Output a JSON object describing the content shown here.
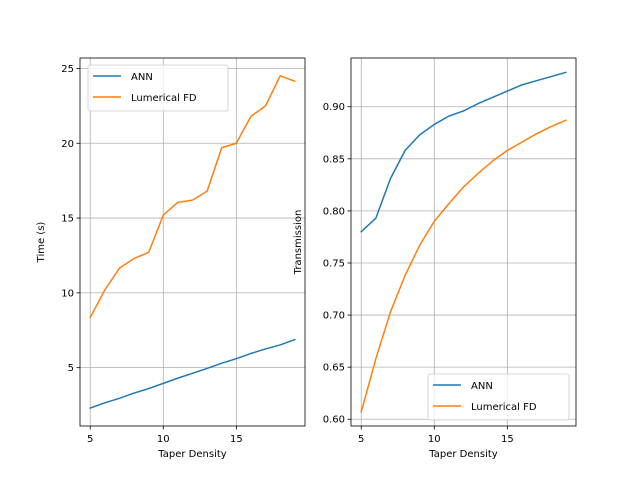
{
  "chart_data": [
    {
      "type": "line",
      "xlabel": "Taper Density",
      "ylabel": "Time (s)",
      "xlim": [
        4.3,
        19.7
      ],
      "ylim": [
        1.1,
        25.7
      ],
      "xticks": [
        5,
        10,
        15
      ],
      "yticks": [
        5,
        10,
        15,
        20,
        25
      ],
      "ytick_format": 0,
      "grid": true,
      "legend_position": "upper-left",
      "x": [
        5,
        6,
        7,
        8,
        9,
        10,
        11,
        12,
        13,
        14,
        15,
        16,
        17,
        18,
        19
      ],
      "series": [
        {
          "name": "ANN",
          "color": "#1f77b4",
          "values": [
            2.3,
            2.65,
            2.95,
            3.3,
            3.6,
            3.95,
            4.3,
            4.62,
            4.95,
            5.3,
            5.6,
            5.95,
            6.25,
            6.52,
            6.88
          ]
        },
        {
          "name": "Lumerical FD",
          "color": "#ff7f0e",
          "values": [
            8.35,
            10.2,
            11.65,
            12.3,
            12.7,
            15.2,
            16.05,
            16.2,
            16.8,
            19.7,
            20.0,
            21.8,
            22.5,
            24.5,
            24.15
          ]
        }
      ]
    },
    {
      "type": "line",
      "xlabel": "Taper Density",
      "ylabel": "Transmission",
      "xlim": [
        4.3,
        19.7
      ],
      "ylim": [
        0.5935,
        0.9468
      ],
      "xticks": [
        5,
        10,
        15
      ],
      "yticks": [
        0.6,
        0.65,
        0.7,
        0.75,
        0.8,
        0.85,
        0.9
      ],
      "ytick_format": 2,
      "grid": true,
      "legend_position": "lower-right",
      "x": [
        5,
        6,
        7,
        8,
        9,
        10,
        11,
        12,
        13,
        14,
        15,
        16,
        17,
        18,
        19
      ],
      "series": [
        {
          "name": "ANN",
          "color": "#1f77b4",
          "values": [
            0.78,
            0.793,
            0.831,
            0.858,
            0.873,
            0.883,
            0.891,
            0.896,
            0.903,
            0.909,
            0.915,
            0.921,
            0.925,
            0.929,
            0.933
          ]
        },
        {
          "name": "Lumerical FD",
          "color": "#ff7f0e",
          "values": [
            0.607,
            0.658,
            0.703,
            0.738,
            0.767,
            0.79,
            0.807,
            0.823,
            0.836,
            0.848,
            0.858,
            0.866,
            0.874,
            0.881,
            0.887
          ]
        }
      ]
    }
  ]
}
